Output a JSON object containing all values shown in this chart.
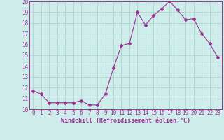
{
  "x": [
    0,
    1,
    2,
    3,
    4,
    5,
    6,
    7,
    8,
    9,
    10,
    11,
    12,
    13,
    14,
    15,
    16,
    17,
    18,
    19,
    20,
    21,
    22,
    23
  ],
  "y": [
    11.7,
    11.4,
    10.6,
    10.6,
    10.6,
    10.6,
    10.8,
    10.4,
    10.4,
    11.4,
    13.8,
    15.9,
    16.1,
    19.0,
    17.8,
    18.7,
    19.3,
    20.0,
    19.2,
    18.3,
    18.4,
    17.0,
    16.1,
    14.8
  ],
  "line_color": "#9b3093",
  "marker": "D",
  "marker_size": 2.5,
  "bg_color": "#ceecea",
  "grid_color": "#add5d3",
  "xlabel": "Windchill (Refroidissement éolien,°C)",
  "xlabel_color": "#9b3093",
  "tick_color": "#9b3093",
  "ylim": [
    10,
    20
  ],
  "xlim_min": -0.5,
  "xlim_max": 23.5,
  "yticks": [
    10,
    11,
    12,
    13,
    14,
    15,
    16,
    17,
    18,
    19,
    20
  ],
  "xticks": [
    0,
    1,
    2,
    3,
    4,
    5,
    6,
    7,
    8,
    9,
    10,
    11,
    12,
    13,
    14,
    15,
    16,
    17,
    18,
    19,
    20,
    21,
    22,
    23
  ],
  "xlabel_fontsize": 6.0,
  "tick_fontsize": 5.5
}
